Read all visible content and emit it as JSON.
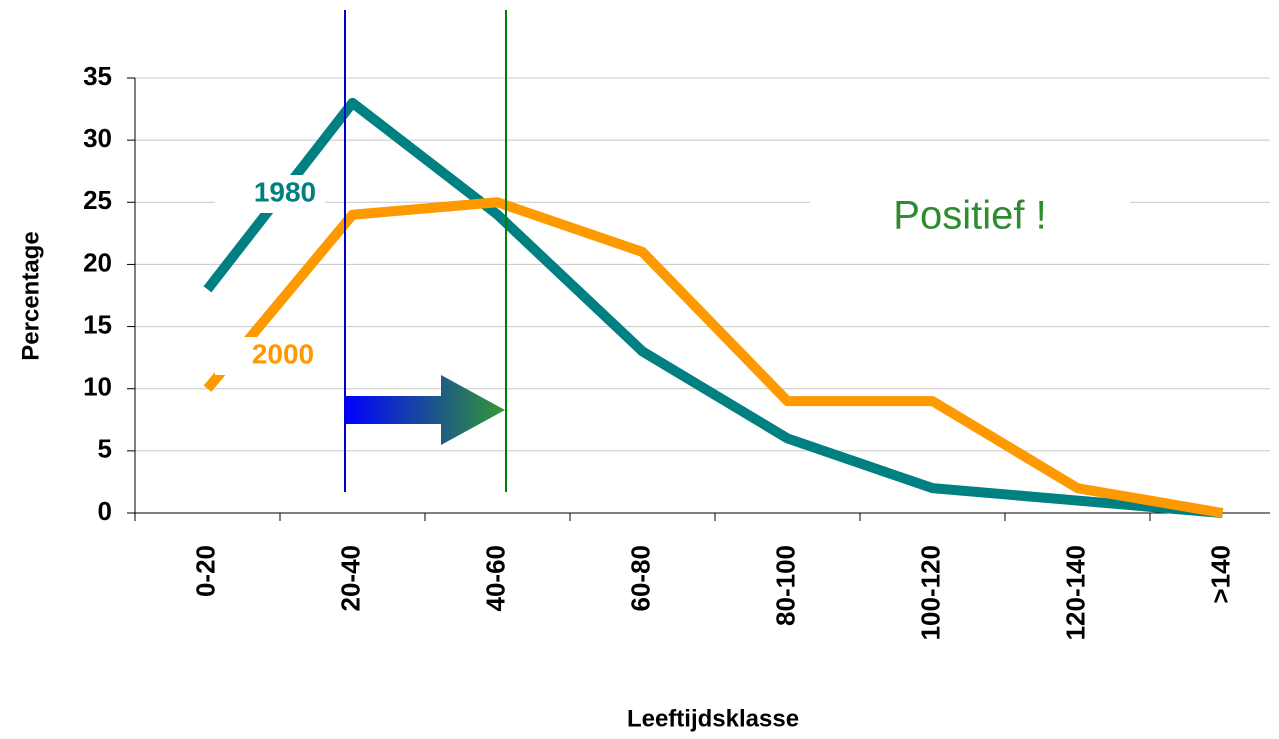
{
  "chart_data": {
    "type": "line",
    "x_label": "Leeftijdsklasse",
    "y_label": "Percentage",
    "categories": [
      "0-20",
      "20-40",
      "40-60",
      "60-80",
      "80-100",
      "100-120",
      "120-140",
      ">140"
    ],
    "series": [
      {
        "name": "1980",
        "color": "#008080",
        "values": [
          18,
          33,
          24,
          13,
          6,
          2,
          1,
          0
        ]
      },
      {
        "name": "2000",
        "color": "#ff9900",
        "values": [
          10,
          24,
          25,
          21,
          9,
          9,
          2,
          0
        ]
      }
    ],
    "annotation": "Positief !",
    "ylim": [
      0,
      35
    ],
    "yticks": [
      0,
      5,
      10,
      15,
      20,
      25,
      30,
      35
    ],
    "grid": true
  }
}
